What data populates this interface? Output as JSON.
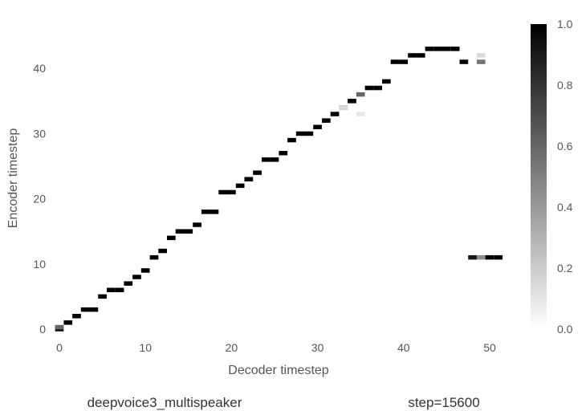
{
  "chart_data": {
    "type": "heatmap",
    "colormap": "gray_r",
    "xlabel": "Decoder timestep",
    "ylabel": "Encoder timestep",
    "xlim": [
      -0.5,
      52.5
    ],
    "ylim": [
      -0.5,
      45.5
    ],
    "xticks": [
      0,
      10,
      20,
      30,
      40,
      50
    ],
    "yticks": [
      0,
      10,
      20,
      30,
      40
    ],
    "colorbar": {
      "range": [
        0,
        1
      ],
      "ticks": [
        "0.0",
        "0.2",
        "0.4",
        "0.6",
        "0.8",
        "1.0"
      ]
    },
    "grid": false,
    "cells": [
      [
        0,
        0,
        0.95
      ],
      [
        0,
        0.3,
        0.6
      ],
      [
        1,
        1,
        1
      ],
      [
        2,
        2,
        1
      ],
      [
        3,
        3,
        1
      ],
      [
        4,
        3,
        1
      ],
      [
        5,
        5,
        1
      ],
      [
        6,
        6,
        1
      ],
      [
        7,
        6,
        1
      ],
      [
        8,
        7,
        1
      ],
      [
        9,
        8,
        1
      ],
      [
        10,
        9,
        1
      ],
      [
        11,
        11,
        1
      ],
      [
        12,
        12,
        1
      ],
      [
        13,
        14,
        1
      ],
      [
        14,
        15,
        1
      ],
      [
        15,
        15,
        1
      ],
      [
        16,
        16,
        1
      ],
      [
        17,
        18,
        1
      ],
      [
        18,
        18,
        1
      ],
      [
        19,
        21,
        1
      ],
      [
        20,
        21,
        1
      ],
      [
        21,
        22,
        1
      ],
      [
        22,
        23,
        1
      ],
      [
        23,
        24,
        1
      ],
      [
        24,
        26,
        1
      ],
      [
        25,
        26,
        1
      ],
      [
        26,
        27,
        1
      ],
      [
        27,
        29,
        1
      ],
      [
        28,
        30,
        1
      ],
      [
        29,
        30,
        1
      ],
      [
        30,
        31,
        1
      ],
      [
        31,
        32,
        1
      ],
      [
        32,
        33,
        1
      ],
      [
        33,
        34,
        0.7
      ],
      [
        34,
        35,
        1
      ],
      [
        35,
        36,
        0.6
      ],
      [
        36,
        37,
        1
      ],
      [
        37,
        37,
        1
      ],
      [
        38,
        38,
        1
      ],
      [
        39,
        41,
        1
      ],
      [
        40,
        41,
        1
      ],
      [
        41,
        42,
        1
      ],
      [
        42,
        42,
        1
      ],
      [
        43,
        43,
        1
      ],
      [
        44,
        43,
        1
      ],
      [
        45,
        43,
        1
      ],
      [
        46,
        43,
        1
      ],
      [
        47,
        41,
        1
      ],
      [
        49,
        41,
        0.55
      ],
      [
        49,
        42,
        0.15
      ],
      [
        35,
        33,
        0.1
      ],
      [
        33,
        34,
        0.15
      ],
      [
        48,
        11,
        0.9
      ],
      [
        49,
        11,
        0.45
      ],
      [
        50,
        11,
        1
      ],
      [
        51,
        11,
        1
      ]
    ]
  },
  "footer": {
    "model": "deepvoice3_multispeaker",
    "step": "step=15600"
  }
}
